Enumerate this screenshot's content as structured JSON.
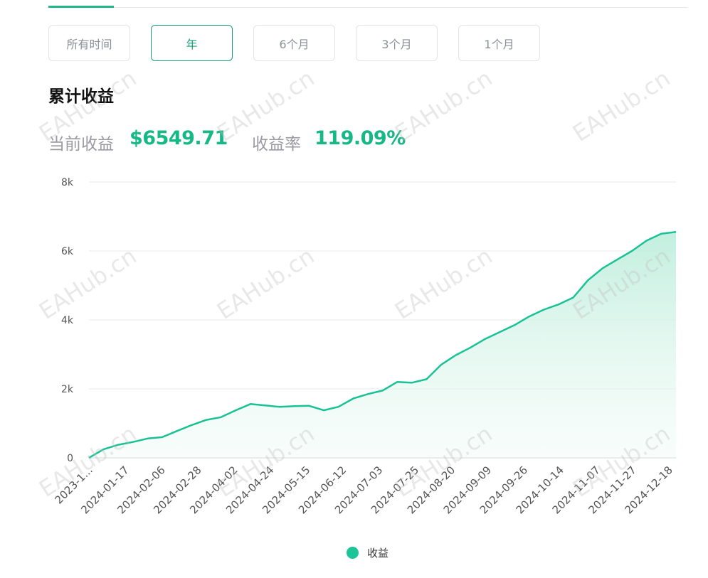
{
  "ranges": {
    "all": "所有时间",
    "year": "年",
    "six_months": "6个月",
    "three_months": "3个月",
    "one_month": "1个月",
    "active": "year"
  },
  "section_title": "累计收益",
  "stats": {
    "current_label": "当前收益",
    "current_value": "$6549.71",
    "rate_label": "收益率",
    "rate_value": "119.09%"
  },
  "watermark": "EAHub.cn",
  "colors": {
    "accent": "#16b886",
    "line": "#19c294",
    "area": "#c9f1e3",
    "active_border": "#1a9d74"
  },
  "chart_data": {
    "type": "area",
    "ylim": [
      0,
      8000
    ],
    "yticks": [
      0,
      2000,
      4000,
      6000,
      8000
    ],
    "ytick_labels": [
      "0",
      "2k",
      "4k",
      "6k",
      "8k"
    ],
    "xtick_labels": [
      "2023-1...",
      "2024-01-17",
      "2024-02-06",
      "2024-02-28",
      "2024-04-02",
      "2024-04-24",
      "2024-05-15",
      "2024-06-12",
      "2024-07-03",
      "2024-07-25",
      "2024-08-20",
      "2024-09-09",
      "2024-09-26",
      "2024-10-14",
      "2024-11-07",
      "2024-11-27",
      "2024-12-18"
    ],
    "grid": true,
    "legend": "bottom",
    "series": [
      {
        "name": "收益",
        "values": [
          0,
          250,
          380,
          460,
          560,
          600,
          780,
          950,
          1100,
          1180,
          1380,
          1560,
          1520,
          1480,
          1500,
          1510,
          1380,
          1480,
          1720,
          1850,
          1950,
          2200,
          2180,
          2280,
          2700,
          2980,
          3200,
          3450,
          3650,
          3850,
          4100,
          4300,
          4450,
          4650,
          5150,
          5500,
          5750,
          6000,
          6300,
          6500,
          6549.71
        ]
      }
    ]
  }
}
